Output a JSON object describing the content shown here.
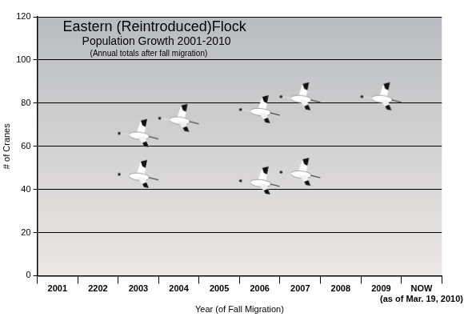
{
  "chart_data": {
    "type": "scatter",
    "title": "Eastern (Reintroduced)Flock",
    "subtitle": "Population Growth 2001-2010",
    "annotations": [
      {
        "text": "(Annual totals after fall migration)"
      },
      {
        "text": "(as of Mar. 19, 2010)",
        "category": "NOW"
      }
    ],
    "x_label": "Year (of Fall Migration)",
    "y_label": "# of Cranes",
    "categories": [
      "2001",
      "2202",
      "2003",
      "2004",
      "2005",
      "2006",
      "2007",
      "2008",
      "2009",
      "NOW"
    ],
    "series": [
      {
        "color": "#ffffff",
        "values": [
          null,
          null,
          66,
          73,
          null,
          77,
          83,
          null,
          83,
          null
        ]
      },
      {
        "color": "#ffffff",
        "values": [
          null,
          null,
          47,
          null,
          null,
          44,
          48,
          null,
          null,
          null
        ]
      }
    ],
    "marker": "crane",
    "ylim": [
      0,
      120
    ],
    "yticks": [
      0,
      20,
      40,
      60,
      80,
      100,
      120
    ],
    "grid": true
  }
}
